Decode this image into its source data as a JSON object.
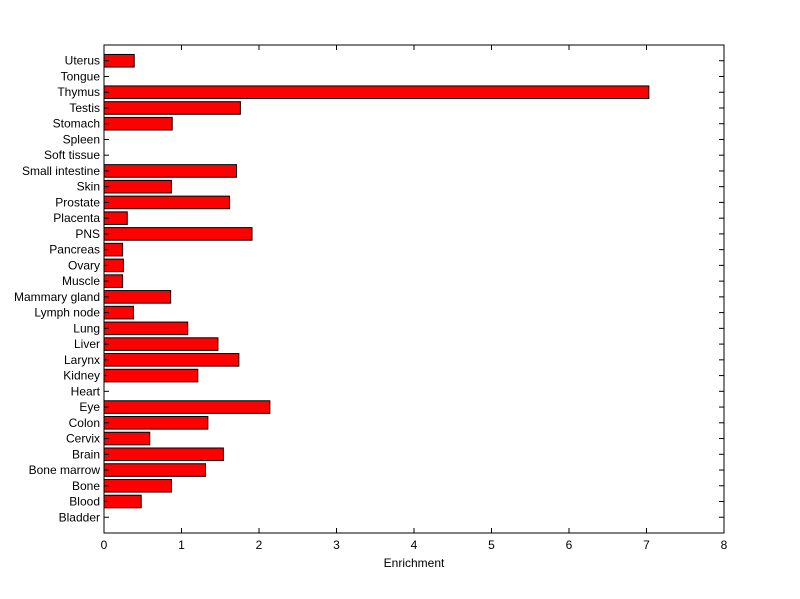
{
  "chart_data": {
    "type": "bar",
    "orientation": "horizontal",
    "title": "",
    "xlabel": "Enrichment",
    "ylabel": "",
    "xlim": [
      0,
      8
    ],
    "xticks": [
      "0",
      "1",
      "2",
      "3",
      "4",
      "5",
      "6",
      "7",
      "8"
    ],
    "bar_color": "#ff0000",
    "grid": false,
    "categories": [
      "Uterus",
      "Tongue",
      "Thymus",
      "Testis",
      "Stomach",
      "Spleen",
      "Soft tissue",
      "Small intestine",
      "Skin",
      "Prostate",
      "Placenta",
      "PNS",
      "Pancreas",
      "Ovary",
      "Muscle",
      "Mammary gland",
      "Lymph node",
      "Lung",
      "Liver",
      "Larynx",
      "Kidney",
      "Heart",
      "Eye",
      "Colon",
      "Cervix",
      "Brain",
      "Bone marrow",
      "Bone",
      "Blood",
      "Bladder"
    ],
    "values": [
      0.39,
      0,
      7.03,
      1.76,
      0.88,
      0,
      0,
      1.71,
      0.87,
      1.62,
      0.3,
      1.91,
      0.24,
      0.25,
      0.24,
      0.86,
      0.38,
      1.08,
      1.47,
      1.74,
      1.21,
      0,
      2.14,
      1.34,
      0.59,
      1.54,
      1.31,
      0.87,
      0.48,
      0
    ]
  }
}
